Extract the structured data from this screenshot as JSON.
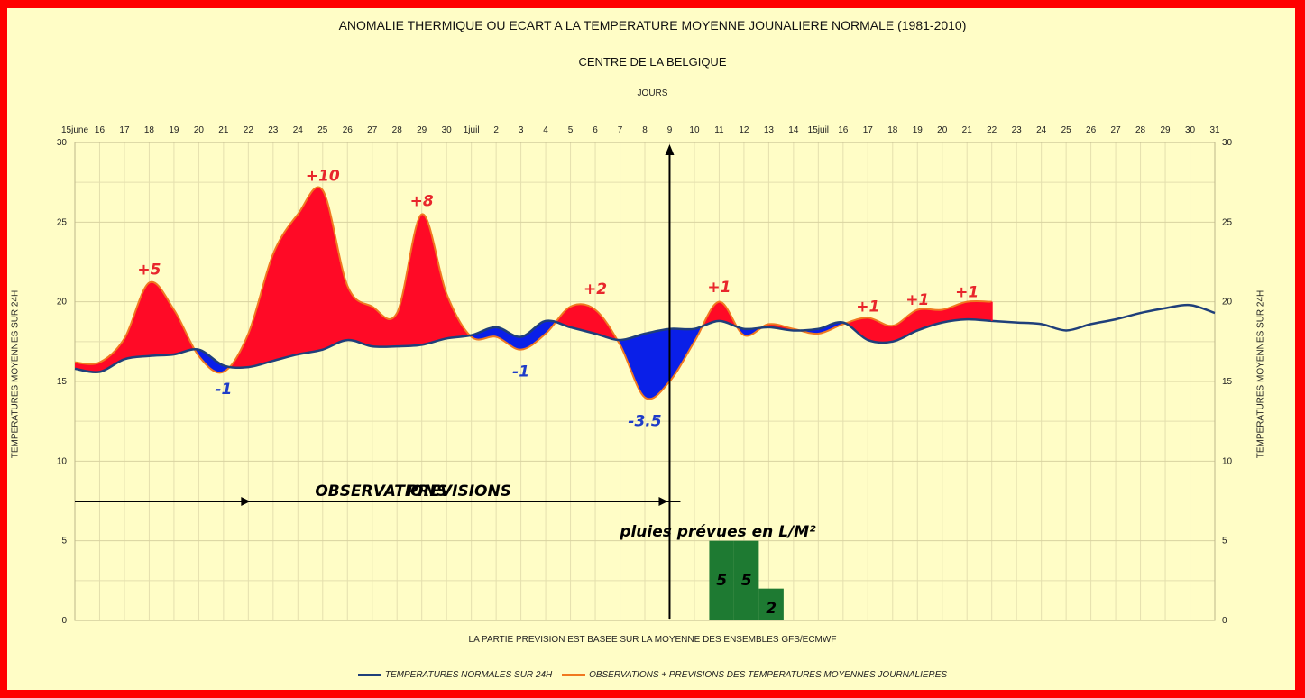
{
  "chart_data": {
    "type": "area",
    "title": "ANOMALIE THERMIQUE OU ECART A LA TEMPERATURE MOYENNE JOUNALIERE NORMALE (1981-2010)",
    "subtitle": "CENTRE DE LA BELGIQUE",
    "xlabel": "JOURS",
    "ylabel": "TEMPERATURES MOYENNES SUR 24H",
    "footnote": "LA PARTIE PREVISION EST BASEE SUR LA MOYENNE DES ENSEMBLES GFS/ECMWF",
    "x_ticks": [
      "15june",
      "16",
      "17",
      "18",
      "19",
      "20",
      "21",
      "22",
      "23",
      "24",
      "25",
      "26",
      "27",
      "28",
      "29",
      "30",
      "1juil",
      "2",
      "3",
      "4",
      "5",
      "6",
      "7",
      "8",
      "9",
      "10",
      "11",
      "12",
      "13",
      "14",
      "15juil",
      "16",
      "17",
      "18",
      "19",
      "20",
      "21",
      "22",
      "23",
      "24",
      "25",
      "26",
      "27",
      "28",
      "29",
      "30",
      "31"
    ],
    "y_ticks": [
      "0",
      "5",
      "10",
      "15",
      "20",
      "25",
      "30"
    ],
    "ylim": [
      0,
      30
    ],
    "grid": true,
    "legend_position": "bottom",
    "colors": {
      "normal": "#1f3f7a",
      "observed": "#f07820",
      "above": "#ff0a26",
      "below": "#0a1fe8",
      "rain": "#1e7a32",
      "ann_above": "#e8262c",
      "ann_below": "#1e3cc8",
      "frame": "#ff0000",
      "background": "#fffdc6"
    },
    "series": [
      {
        "name": "TEMPERATURES NORMALES SUR 24H",
        "values": [
          15.8,
          15.6,
          16.4,
          16.6,
          16.7,
          17.0,
          16.0,
          15.9,
          16.3,
          16.7,
          17.0,
          17.6,
          17.2,
          17.2,
          17.3,
          17.7,
          17.9,
          18.4,
          17.8,
          18.8,
          18.4,
          18.0,
          17.6,
          18.0,
          18.3,
          18.3,
          18.8,
          18.3,
          18.4,
          18.2,
          18.3,
          18.7,
          17.6,
          17.5,
          18.2,
          18.7,
          18.9,
          18.8,
          18.7,
          18.6,
          18.2,
          18.6,
          18.9,
          19.3,
          19.6,
          19.8,
          19.3
        ]
      },
      {
        "name": "OBSERVATIONS + PREVISIONS DES TEMPERATURES MOYENNES JOURNALIERES",
        "values": [
          16.2,
          16.2,
          17.7,
          21.2,
          19.5,
          16.6,
          15.6,
          18.0,
          23.0,
          25.5,
          27.0,
          21.0,
          19.7,
          19.3,
          25.5,
          20.5,
          17.8,
          17.8,
          17.0,
          18.0,
          19.7,
          19.5,
          17.3,
          14.0,
          15.0,
          17.5,
          20.0,
          17.9,
          18.6,
          18.3,
          18.0,
          18.6,
          19.0,
          18.5,
          19.5,
          19.5,
          20.0,
          20.0
        ]
      }
    ],
    "annotations": [
      {
        "text": "+5",
        "x": "18",
        "y": 21.7,
        "kind": "above"
      },
      {
        "text": "-1",
        "x": "21",
        "y": 14.2,
        "kind": "below"
      },
      {
        "text": "+10",
        "x": "25",
        "y": 27.6,
        "kind": "above"
      },
      {
        "text": "+8",
        "x": "29",
        "y": 26.0,
        "kind": "above"
      },
      {
        "text": "-1",
        "x": "3",
        "y": 15.3,
        "kind": "below"
      },
      {
        "text": "+2",
        "x": "6",
        "y": 20.5,
        "kind": "above"
      },
      {
        "text": "-3.5",
        "x": "8",
        "y": 12.2,
        "kind": "below"
      },
      {
        "text": "+1",
        "x": "11",
        "y": 20.6,
        "kind": "above"
      },
      {
        "text": "+1",
        "x": "17",
        "y": 19.4,
        "kind": "above"
      },
      {
        "text": "+1",
        "x": "19",
        "y": 19.8,
        "kind": "above"
      },
      {
        "text": "+1",
        "x": "21",
        "y": 20.3,
        "kind": "above"
      }
    ],
    "observations_label": "OBSERVATIONS",
    "previsions_label": "PREVISIONS",
    "rain_title": "pluies prévues en L/M²",
    "rain_bars": [
      {
        "x": "11",
        "value": 5,
        "label": "5"
      },
      {
        "x": "12",
        "value": 5,
        "label": "5"
      },
      {
        "x": "13",
        "value": 2,
        "label": "2"
      }
    ]
  }
}
